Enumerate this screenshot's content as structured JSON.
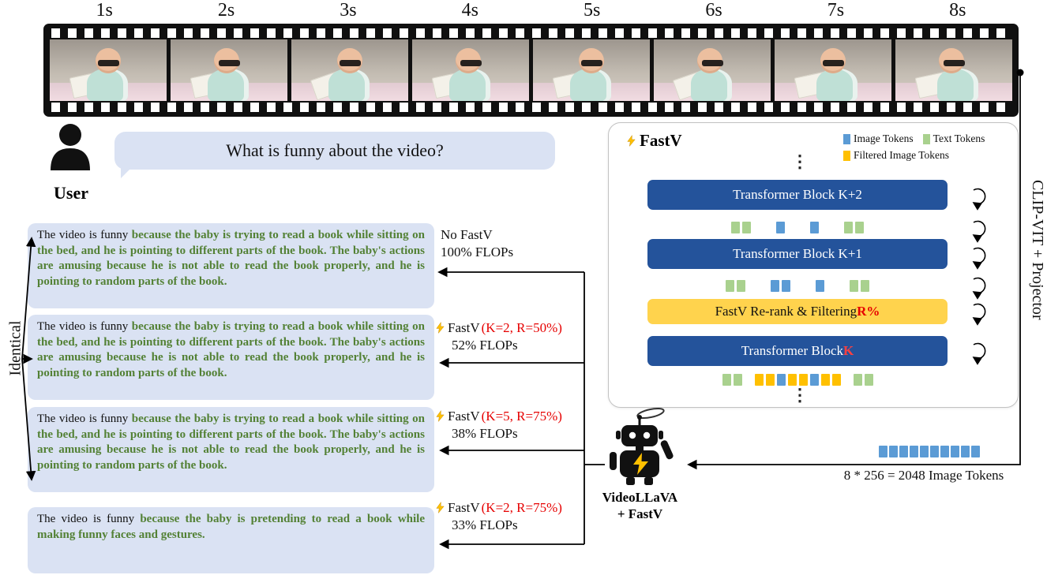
{
  "theme": {
    "highlight_green": "#538135",
    "accent_red": "#e60000",
    "answer_bg": "#dae2f3",
    "bubble_bg": "#dae2f3",
    "block_navy": "#24539b",
    "filter_yellow": "#ffd34d",
    "token_image": "#5b9bd5",
    "token_text": "#a9d18e",
    "token_filtered": "#ffc000"
  },
  "filmstrip": {
    "timestamps": [
      "1s",
      "2s",
      "3s",
      "4s",
      "5s",
      "6s",
      "7s",
      "8s"
    ]
  },
  "user": {
    "label": "User",
    "question": "What is funny about the video?"
  },
  "identical_label": "Identical",
  "answers": [
    {
      "prefix": "The video is funny ",
      "highlight": "because the baby is trying to read a book while sitting on the bed, and he is pointing to different parts of the book. The baby's actions are amusing because he is not able to read the book properly, and he is pointing to random parts of the book."
    },
    {
      "prefix": "The video is funny ",
      "highlight": "because the baby is trying to read a book while sitting on the bed, and he is pointing to different parts of the book. The baby's actions are amusing because he is not able to read the book properly, and he is pointing to random parts of the book."
    },
    {
      "prefix": "The video is funny ",
      "highlight": "because the baby is trying to read a book while sitting on the bed, and he is pointing to different parts of the book. The baby's actions are amusing because he is not able to read the book properly, and he is pointing to random parts of the book."
    },
    {
      "prefix": "The video is funny ",
      "highlight": "because the baby is pretending to read a book while making funny faces and gestures."
    }
  ],
  "flop_labels": [
    {
      "name": "No FastV",
      "open": "",
      "config_red": "",
      "close": "",
      "flops": "100% FLOPs"
    },
    {
      "name": "FastV",
      "open": "(",
      "config_red": "K=2, R=50%",
      "close": ")",
      "flops": "52% FLOPs"
    },
    {
      "name": "FastV",
      "open": "(",
      "config_red": "K=5, R=75%",
      "close": ")",
      "flops": "38% FLOPs"
    },
    {
      "name": "FastV",
      "open": "(",
      "config_red": "K=2, R=75%",
      "close": ")",
      "flops": "33% FLOPs"
    }
  ],
  "fastv_diagram": {
    "title": "FastV",
    "dots": "⋮",
    "legend": [
      {
        "label": "Image Tokens",
        "type": "image"
      },
      {
        "label": "Text Tokens",
        "type": "text"
      },
      {
        "label": "Filtered Image Tokens",
        "type": "filtered"
      }
    ],
    "blocks": {
      "k2": {
        "label": "Transformer Block K+2"
      },
      "k1": {
        "label": "Transformer Block K+1"
      },
      "filter": {
        "label_prefix": "FastV Re-rank & Filtering ",
        "label_red": "R%"
      },
      "k": {
        "label_prefix": "Transformer Block ",
        "label_red": "K"
      }
    },
    "token_rows": {
      "row1": [
        "text",
        "text",
        "gap",
        "image",
        "gap",
        "image",
        "gap",
        "text",
        "text"
      ],
      "row2": [
        "text",
        "text",
        "gap",
        "image",
        "image",
        "gap",
        "image",
        "gap",
        "text",
        "text"
      ],
      "row3": [
        "text",
        "text",
        "sgap",
        "filtered",
        "filtered",
        "image",
        "filtered",
        "filtered",
        "image",
        "filtered",
        "filtered",
        "sgap",
        "text",
        "text"
      ]
    }
  },
  "clip_projector_label": "CLIP-VIT + Projector",
  "robot": {
    "label_line1": "VideoLLaVA",
    "label_line2": "+ FastV"
  },
  "image_tokens_caption": "8 * 256 = 2048 Image Tokens",
  "bottom_tokens": [
    "image",
    "image",
    "image",
    "image",
    "image",
    "image",
    "image",
    "image",
    "image",
    "image"
  ]
}
